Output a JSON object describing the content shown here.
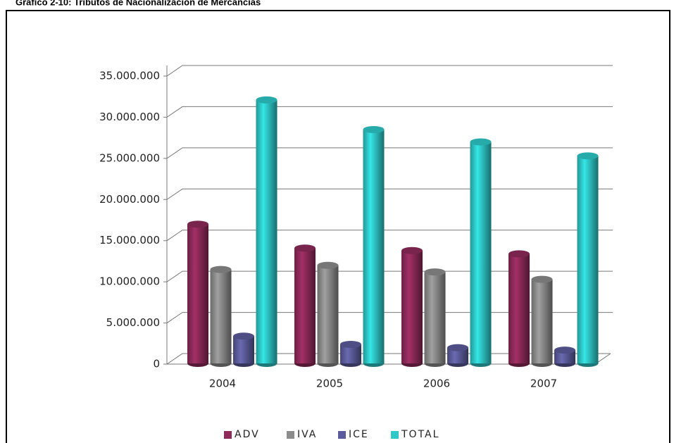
{
  "chart_data": {
    "type": "bar3d",
    "title": "Gráfico 2-10: Tributos de Nacionalización de Mercancías",
    "categories": [
      "2004",
      "2005",
      "2006",
      "2007"
    ],
    "series": [
      {
        "name": "ADV",
        "color": "#8e2a5a",
        "values": [
          17000000,
          14100000,
          13800000,
          13400000
        ]
      },
      {
        "name": "IVA",
        "color": "#8c8c8c",
        "values": [
          11500000,
          12000000,
          11200000,
          10300000
        ]
      },
      {
        "name": "ICE",
        "color": "#5c5c9c",
        "values": [
          3400000,
          2400000,
          2000000,
          1700000
        ]
      },
      {
        "name": "TOTAL",
        "color": "#2ec8c8",
        "values": [
          32100000,
          28500000,
          27000000,
          25300000
        ]
      }
    ],
    "ylim": [
      0,
      35000000
    ],
    "yticks": [
      0,
      {
        "value": 5000000,
        "label": "5.000.000"
      },
      {
        "value": 10000000,
        "label": "10.000.000"
      },
      {
        "value": 15000000,
        "label": "15.000.000"
      },
      {
        "value": 20000000,
        "label": "20.000.000"
      },
      {
        "value": 25000000,
        "label": "25.000.000"
      },
      {
        "value": 30000000,
        "label": "30.000.000"
      },
      {
        "value": 35000000,
        "label": "35.000.000"
      }
    ],
    "grid": true,
    "legend": "bottom"
  }
}
